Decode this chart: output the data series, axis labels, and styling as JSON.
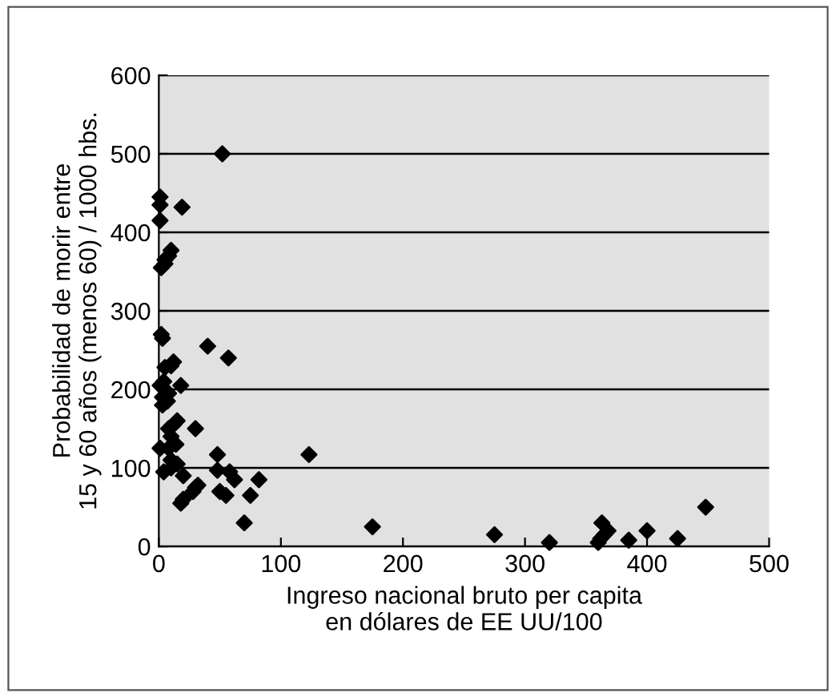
{
  "chart_data": {
    "type": "scatter",
    "xlabel": "Ingreso nacional bruto per capita\nen dólares de EE UU/100",
    "ylabel": "Probabilidad de morir entre\n15 y 60 años (menos 60) / 1000 hbs.",
    "x": [
      1,
      1,
      1,
      19,
      52,
      2,
      5,
      8,
      10,
      5,
      2,
      3,
      1,
      4,
      3,
      8,
      7,
      10,
      5,
      12,
      3,
      1,
      8,
      14,
      18,
      40,
      57,
      8,
      12,
      15,
      10,
      30,
      4,
      10,
      15,
      20,
      10,
      48,
      48,
      58,
      62,
      82,
      30,
      32,
      28,
      20,
      18,
      50,
      55,
      75,
      70,
      123,
      175,
      275,
      320,
      360,
      362,
      365,
      363,
      368,
      385,
      400,
      425,
      448
    ],
    "values": [
      445,
      435,
      415,
      432,
      500,
      355,
      360,
      370,
      377,
      365,
      270,
      265,
      205,
      210,
      190,
      195,
      185,
      230,
      228,
      235,
      180,
      125,
      125,
      130,
      205,
      255,
      240,
      150,
      155,
      160,
      140,
      150,
      95,
      100,
      105,
      90,
      110,
      117,
      97,
      95,
      85,
      85,
      75,
      78,
      70,
      60,
      55,
      70,
      65,
      65,
      30,
      117,
      25,
      15,
      5,
      5,
      10,
      15,
      30,
      20,
      8,
      20,
      10,
      50
    ],
    "color": "#000000",
    "marker": "diamond",
    "xlim": [
      0,
      500
    ],
    "ylim": [
      0,
      600
    ],
    "xticks": [
      0,
      100,
      200,
      300,
      400,
      500
    ],
    "yticks": [
      0,
      100,
      200,
      300,
      400,
      500,
      600
    ],
    "grid": "y"
  }
}
